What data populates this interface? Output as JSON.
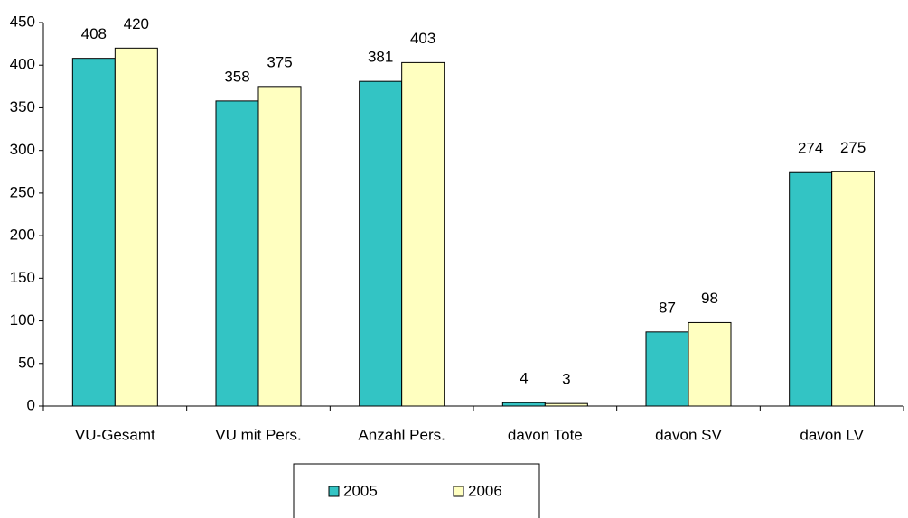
{
  "chart_data": {
    "type": "bar",
    "categories": [
      "VU-Gesamt",
      "VU mit Pers.",
      "Anzahl Pers.",
      "davon Tote",
      "davon SV",
      "davon LV"
    ],
    "series": [
      {
        "name": "2005",
        "color": "#33c4c4",
        "values": [
          408,
          358,
          381,
          4,
          87,
          274
        ]
      },
      {
        "name": "2006",
        "color": "#ffffc0",
        "values": [
          420,
          375,
          403,
          3,
          98,
          275
        ]
      }
    ],
    "ylim": [
      0,
      450
    ],
    "yticks": [
      0,
      50,
      100,
      150,
      200,
      250,
      300,
      350,
      400,
      450
    ],
    "grid": false,
    "legend": "bottom",
    "data_labels": true
  }
}
